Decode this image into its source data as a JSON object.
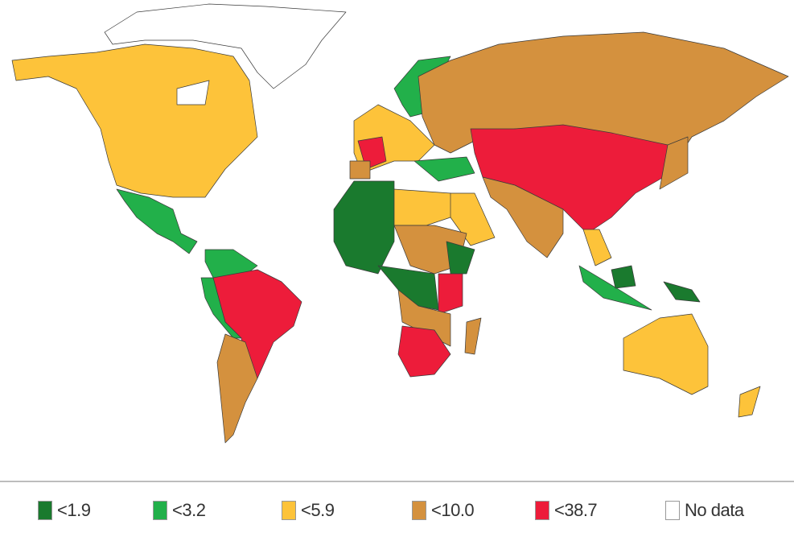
{
  "legend": {
    "items": [
      {
        "label": "<1.9",
        "color": "#1a7a2e"
      },
      {
        "label": "<3.2",
        "color": "#22b04a"
      },
      {
        "label": "<5.9",
        "color": "#fdc33a"
      },
      {
        "label": "<10.0",
        "color": "#d4913e"
      },
      {
        "label": "<38.7",
        "color": "#ed1c3a"
      },
      {
        "label": "No data",
        "color": "#ffffff"
      }
    ]
  }
}
